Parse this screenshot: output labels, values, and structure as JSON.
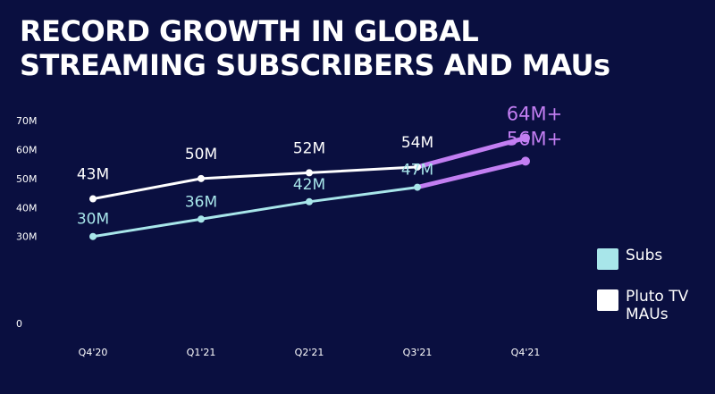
{
  "title_lines": [
    "RECORD GROWTH IN GLOBAL",
    "STREAMING SUBSCRIBERS AND MAUs"
  ],
  "colors": {
    "background": "#0a0f40",
    "mau_line": "#ffffff",
    "subs_line": "#a8e6ea",
    "highlight": "#c27ef2",
    "axis_text": "#ffffff"
  },
  "legend": [
    {
      "label": "Subs",
      "color": "#a8e6ea"
    },
    {
      "label": "Pluto TV\nMAUs",
      "color": "#ffffff"
    }
  ],
  "chart_data": {
    "type": "line",
    "title": "RECORD GROWTH IN GLOBAL STREAMING SUBSCRIBERS AND MAUs",
    "categories": [
      "Q4'20",
      "Q1'21",
      "Q2'21",
      "Q3'21",
      "Q4'21"
    ],
    "ylim": [
      0,
      70
    ],
    "yticks": [
      0,
      10,
      20,
      30,
      40,
      50,
      60,
      70
    ],
    "ytick_labels": [
      "0",
      "",
      "",
      "30M",
      "40M",
      "50M",
      "60M",
      "70M"
    ],
    "grid": false,
    "legend_position": "right",
    "series": [
      {
        "name": "Pluto TV MAUs",
        "values": [
          43,
          50,
          52,
          54,
          64
        ],
        "labels": [
          "43M",
          "50M",
          "52M",
          "54M",
          "64M+"
        ],
        "highlight_last": true
      },
      {
        "name": "Subs",
        "values": [
          30,
          36,
          42,
          47,
          56
        ],
        "labels": [
          "30M",
          "36M",
          "42M",
          "47M",
          "56M+"
        ],
        "highlight_last": true
      }
    ]
  }
}
